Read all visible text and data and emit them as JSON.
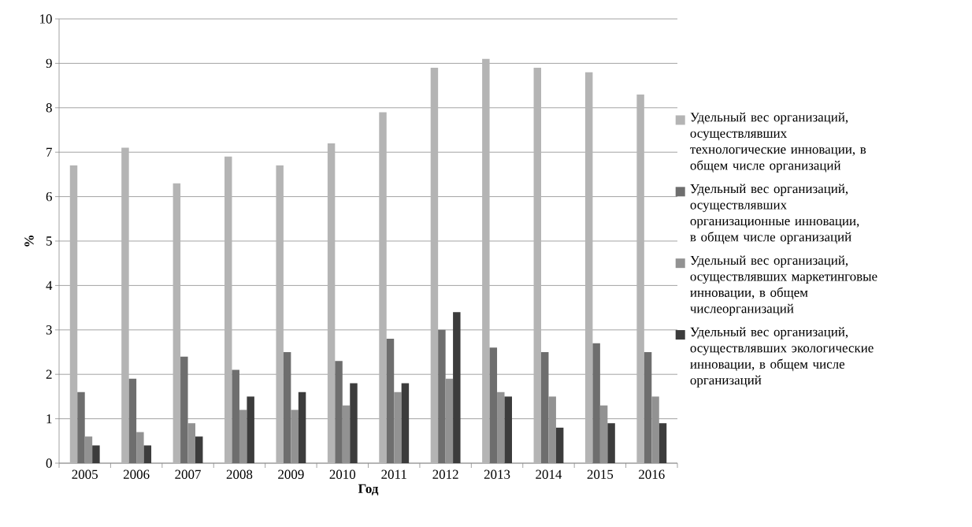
{
  "chart_data": {
    "type": "bar",
    "xlabel": "Год",
    "ylabel": "%",
    "categories": [
      "2005",
      "2006",
      "2007",
      "2008",
      "2009",
      "2010",
      "2011",
      "2012",
      "2013",
      "2014",
      "2015",
      "2016"
    ],
    "series": [
      {
        "name": "Удельный вес организаций, осуществлявших технологические инновации, в общем числе организаций",
        "color": "#b4b4b4",
        "values": [
          6.7,
          7.1,
          6.3,
          6.9,
          6.7,
          7.2,
          7.9,
          8.9,
          9.1,
          8.9,
          8.8,
          8.3
        ]
      },
      {
        "name": "Удельный вес организаций, осуществлявших организационные инновации, в общем числе организаций",
        "color": "#6e6e6e",
        "values": [
          1.6,
          1.9,
          2.4,
          2.1,
          2.5,
          2.3,
          2.8,
          3.0,
          2.6,
          2.5,
          2.7,
          2.5
        ]
      },
      {
        "name": "Удельный вес организаций, осуществлявших маркетинговые инновации, в общем числеорганизаций",
        "color": "#929292",
        "values": [
          0.6,
          0.7,
          0.9,
          1.2,
          1.2,
          1.3,
          1.6,
          1.9,
          1.6,
          1.5,
          1.3,
          1.5
        ]
      },
      {
        "name": "Удельный вес организаций, осуществлявших экологические инновации, в общем числе организаций",
        "color": "#3c3c3c",
        "values": [
          0.4,
          0.4,
          0.6,
          1.5,
          1.6,
          1.8,
          1.8,
          3.4,
          1.5,
          0.8,
          0.9,
          0.9
        ]
      }
    ],
    "ylim": [
      0,
      10
    ],
    "yticks": [
      0,
      1,
      2,
      3,
      4,
      5,
      6,
      7,
      8,
      9,
      10
    ],
    "grid": "y",
    "legend": "right"
  }
}
